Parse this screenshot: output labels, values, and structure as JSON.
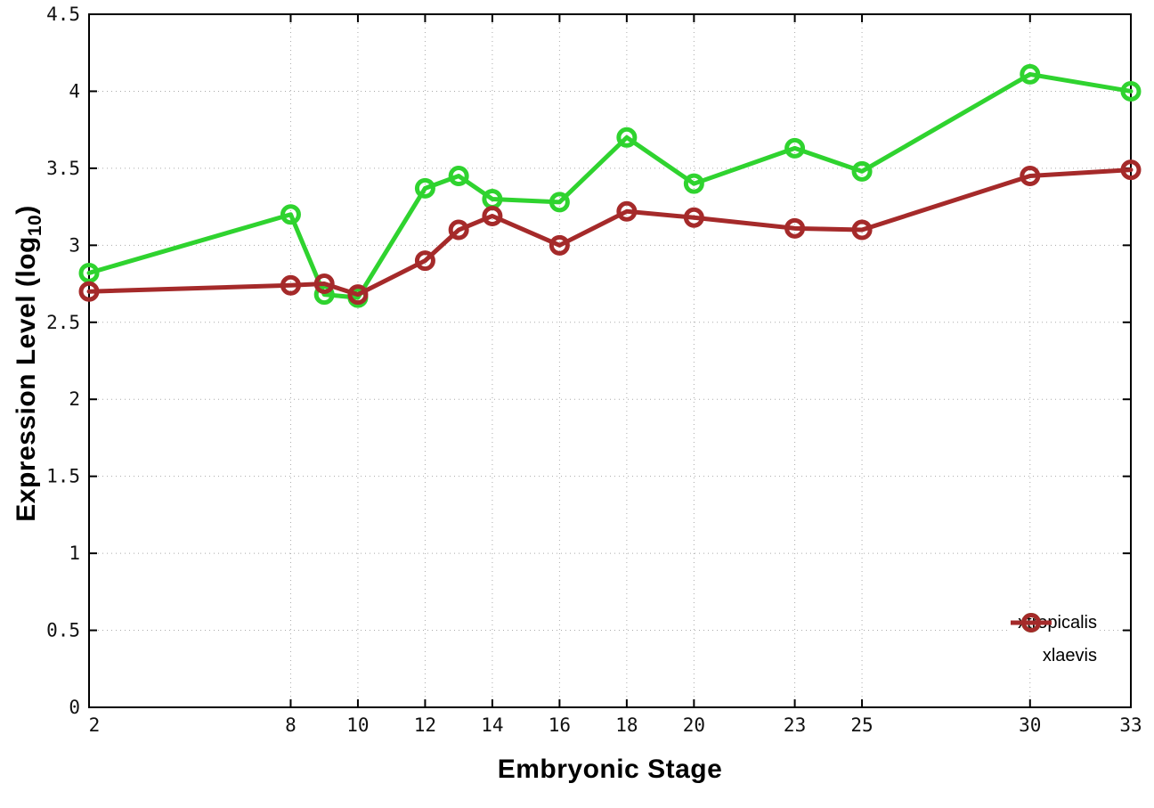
{
  "chart_data": {
    "type": "line",
    "title": "",
    "xlabel": "Embryonic Stage",
    "ylabel": "Expression Level (log10)",
    "ylabel_parts": {
      "main": "Expression Level (log",
      "sub": "10",
      "end": ")"
    },
    "x": [
      2,
      8,
      9,
      10,
      12,
      13,
      14,
      16,
      18,
      20,
      23,
      25,
      30,
      33
    ],
    "series": [
      {
        "name": "xtropicalis",
        "color": "#2fd32f",
        "marker": "open-circle",
        "values": [
          2.82,
          3.2,
          2.68,
          2.66,
          3.37,
          3.45,
          3.3,
          3.28,
          3.7,
          3.4,
          3.63,
          3.48,
          4.11,
          4.0
        ]
      },
      {
        "name": "xlaevis",
        "color": "#a52a2a",
        "marker": "open-circle",
        "values": [
          2.7,
          2.74,
          2.75,
          2.68,
          2.9,
          3.1,
          3.19,
          3.0,
          3.22,
          3.18,
          3.11,
          3.1,
          3.45,
          3.49
        ]
      }
    ],
    "xlim": [
      2,
      33
    ],
    "ylim": [
      0,
      4.5
    ],
    "x_tick_values": [
      2,
      8,
      10,
      12,
      14,
      16,
      18,
      20,
      23,
      25,
      30,
      33
    ],
    "x_tick_labels": [
      "2",
      "8",
      "10",
      "12",
      "14",
      "16",
      "18",
      "20",
      "23",
      "25",
      "30",
      "33"
    ],
    "y_tick_values": [
      0,
      0.5,
      1,
      1.5,
      2,
      2.5,
      3,
      3.5,
      4,
      4.5
    ],
    "y_tick_labels": [
      "0",
      "0.5",
      "1",
      "1.5",
      "2",
      "2.5",
      "3",
      "3.5",
      "4",
      "4.5"
    ],
    "grid": true,
    "legend_position": "inside-bottom-right"
  },
  "colors": {
    "background": "#ffffff",
    "axis_border": "#000000",
    "gridline": "#aaaaaa",
    "tick_text": "#111111"
  }
}
